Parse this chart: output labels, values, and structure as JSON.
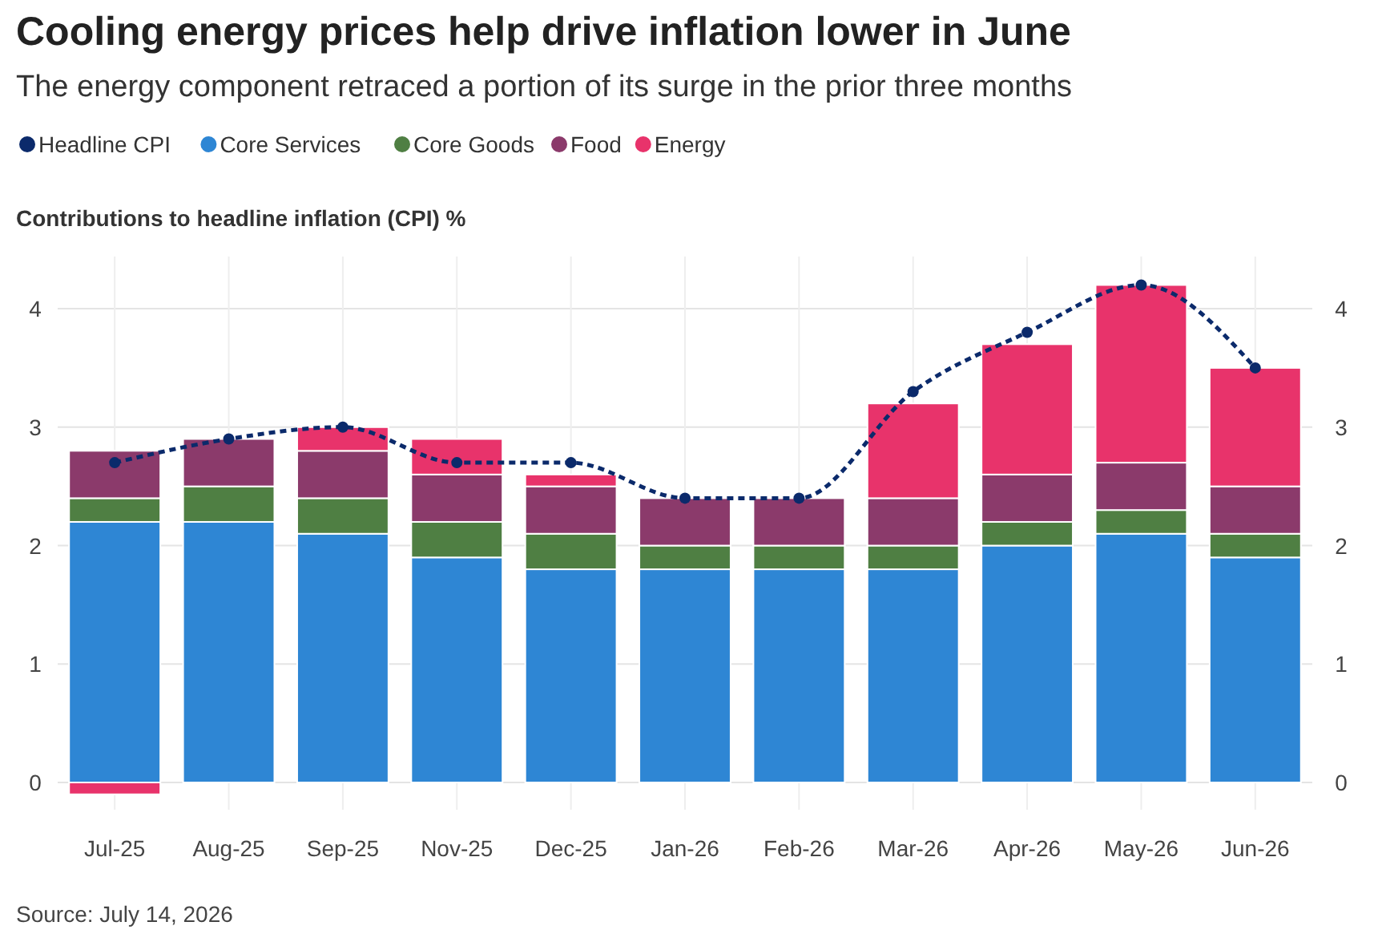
{
  "chart_data": {
    "type": "bar",
    "stacked": true,
    "title": "Cooling energy prices help drive inflation lower in June",
    "subtitle": "The energy component retraced a portion of its surge in the prior three months",
    "ylabel": "Contributions to headline inflation (CPI) %",
    "annotations": [
      "Source: July 14, 2026"
    ],
    "categories": [
      "Jul-25",
      "Aug-25",
      "Sep-25",
      "Nov-25",
      "Dec-25",
      "Jan-26",
      "Feb-26",
      "Mar-26",
      "Apr-26",
      "May-26",
      "Jun-26"
    ],
    "series": [
      {
        "name": "Headline CPI",
        "type": "line",
        "color": "#0b2a6b",
        "marker": "circle",
        "line_style": "dashed",
        "values": [
          2.7,
          2.9,
          3.0,
          2.7,
          2.7,
          2.4,
          2.4,
          3.3,
          3.8,
          4.2,
          3.5
        ]
      },
      {
        "name": "Core Services",
        "color": "#2e86d4",
        "values": [
          2.2,
          2.2,
          2.1,
          1.9,
          1.8,
          1.8,
          1.8,
          1.8,
          2.0,
          2.1,
          1.9
        ]
      },
      {
        "name": "Core Goods",
        "color": "#4f7f43",
        "values": [
          0.2,
          0.3,
          0.3,
          0.3,
          0.3,
          0.2,
          0.2,
          0.2,
          0.2,
          0.2,
          0.2
        ]
      },
      {
        "name": "Food",
        "color": "#8b3a6b",
        "values": [
          0.4,
          0.4,
          0.4,
          0.4,
          0.4,
          0.4,
          0.4,
          0.4,
          0.4,
          0.4,
          0.4
        ]
      },
      {
        "name": "Energy",
        "color": "#e8336b",
        "values": [
          -0.1,
          0,
          0.2,
          0.3,
          0.1,
          0,
          0,
          0.8,
          1.1,
          1.5,
          1.0
        ]
      }
    ],
    "ylim": [
      -0.23,
      4.44
    ],
    "yticks": [
      0,
      1,
      2,
      3,
      4
    ],
    "y2lim": [
      -0.23,
      4.44
    ],
    "y2ticks": [
      0,
      1,
      2,
      3,
      4
    ],
    "grid": true,
    "legend": "top left"
  }
}
